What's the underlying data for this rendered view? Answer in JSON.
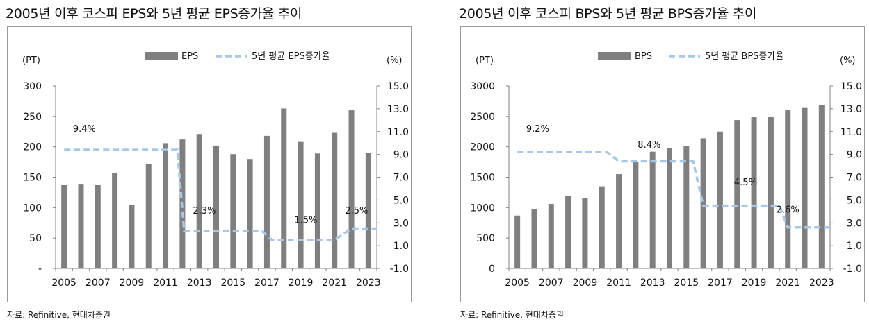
{
  "charts": [
    {
      "title": "2005년 이후 코스피 EPS와 5년 평균 EPS증가율 추이",
      "source": "자료: Refinitive, 현대차증권"
    },
    {
      "title": "2005년 이후 코스피 BPS와 5년 평균 BPS증가율 추이",
      "source": "자료: Refinitive, 현대차증권"
    }
  ],
  "chart_data": [
    {
      "type": "bar",
      "title": "2005년 이후 코스피 EPS와 5년 평균 EPS증가율 추이",
      "categories": [
        "2005",
        "2006",
        "2007",
        "2008",
        "2009",
        "2010",
        "2011",
        "2012",
        "2013",
        "2014",
        "2015",
        "2016",
        "2017",
        "2018",
        "2019",
        "2020",
        "2021",
        "2022",
        "2023"
      ],
      "xtick_labels": [
        "2005",
        "2007",
        "2009",
        "2011",
        "2013",
        "2015",
        "2017",
        "2019",
        "2021",
        "2023"
      ],
      "left_unit": "(PT)",
      "right_unit": "(%)",
      "ylim_left": [
        0,
        300
      ],
      "left_ticks": [
        "-",
        "50",
        "100",
        "150",
        "200",
        "250",
        "300"
      ],
      "ylim_right": [
        -1.0,
        15.0
      ],
      "right_ticks": [
        "-1.0",
        "1.0",
        "3.0",
        "5.0",
        "7.0",
        "9.0",
        "11.0",
        "13.0",
        "15.0"
      ],
      "series": [
        {
          "name": "EPS",
          "kind": "bar",
          "axis": "left",
          "values": [
            138,
            139,
            138,
            157,
            104,
            172,
            206,
            212,
            221,
            202,
            188,
            180,
            218,
            263,
            208,
            189,
            223,
            260,
            190
          ]
        },
        {
          "name": "5년 평균 EPS증가율",
          "kind": "line",
          "axis": "right",
          "x": [
            0,
            6.7,
            7.1,
            11.7,
            12.3,
            16.0,
            17.0,
            18.5
          ],
          "values": [
            9.4,
            9.4,
            2.3,
            2.3,
            1.5,
            1.5,
            2.5,
            2.5
          ]
        }
      ],
      "annotations": [
        {
          "text": "9.4%",
          "x": 1.2,
          "y": 11.0
        },
        {
          "text": "2.3%",
          "x": 8.3,
          "y": 3.8
        },
        {
          "text": "1.5%",
          "x": 14.3,
          "y": 3.0
        },
        {
          "text": "2.5%",
          "x": 17.3,
          "y": 3.8
        }
      ]
    },
    {
      "type": "bar",
      "title": "2005년 이후 코스피 BPS와 5년 평균 BPS증가율 추이",
      "categories": [
        "2005",
        "2006",
        "2007",
        "2008",
        "2009",
        "2010",
        "2011",
        "2012",
        "2013",
        "2014",
        "2015",
        "2016",
        "2017",
        "2018",
        "2019",
        "2020",
        "2021",
        "2022",
        "2023"
      ],
      "xtick_labels": [
        "2005",
        "2007",
        "2009",
        "2011",
        "2013",
        "2015",
        "2017",
        "2019",
        "2021",
        "2023"
      ],
      "left_unit": "(PT)",
      "right_unit": "(%)",
      "ylim_left": [
        0,
        3000
      ],
      "left_ticks": [
        "0",
        "500",
        "1000",
        "1500",
        "2000",
        "2500",
        "3000"
      ],
      "ylim_right": [
        -1.0,
        15.0
      ],
      "right_ticks": [
        "-1.0",
        "1.0",
        "3.0",
        "5.0",
        "7.0",
        "9.0",
        "11.0",
        "13.0",
        "15.0"
      ],
      "series": [
        {
          "name": "BPS",
          "kind": "bar",
          "axis": "left",
          "values": [
            870,
            970,
            1060,
            1190,
            1160,
            1350,
            1550,
            1760,
            1920,
            1980,
            2010,
            2140,
            2250,
            2440,
            2490,
            2490,
            2600,
            2650,
            2690
          ]
        },
        {
          "name": "5년 평균 BPS증가율",
          "kind": "line",
          "axis": "right",
          "x": [
            0,
            5.3,
            6.0,
            10.4,
            11.0,
            15.0,
            15.5,
            16.0,
            18.5
          ],
          "values": [
            9.2,
            9.2,
            8.4,
            8.4,
            4.5,
            4.5,
            4.5,
            2.6,
            2.6
          ]
        }
      ],
      "annotations": [
        {
          "text": "9.2%",
          "x": 1.2,
          "y": 11.0
        },
        {
          "text": "8.4%",
          "x": 7.8,
          "y": 9.6
        },
        {
          "text": "4.5%",
          "x": 13.5,
          "y": 6.3
        },
        {
          "text": "2.6%",
          "x": 16.0,
          "y": 3.9
        }
      ]
    }
  ]
}
